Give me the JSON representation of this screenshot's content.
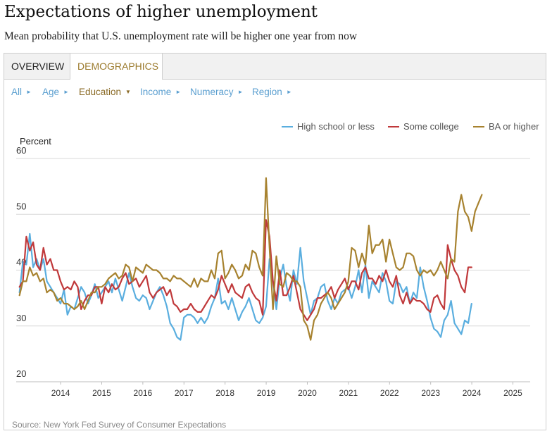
{
  "header": {
    "title": "Expectations of higher unemployment",
    "subtitle": "Mean probability that U.S. unemployment rate will be higher one year from now"
  },
  "tabs": [
    {
      "label": "OVERVIEW",
      "active": false
    },
    {
      "label": "DEMOGRAPHICS",
      "active": true
    }
  ],
  "filters": [
    {
      "label": "All",
      "active": false
    },
    {
      "label": "Age",
      "active": false
    },
    {
      "label": "Education",
      "active": true
    },
    {
      "label": "Income",
      "active": false
    },
    {
      "label": "Numeracy",
      "active": false
    },
    {
      "label": "Region",
      "active": false
    }
  ],
  "source": "Source: New York Fed Survey of Consumer Expectations",
  "colors": {
    "hs": "#5aaedf",
    "sc": "#c0393b",
    "ba": "#a7822f",
    "grid": "#d8d8d8",
    "axis": "#bdbdbd"
  },
  "chart_data": {
    "type": "line",
    "title": "",
    "ylabel": "Percent",
    "ylim": [
      20,
      60
    ],
    "yticks": [
      "20",
      "30",
      "40",
      "50",
      "60"
    ],
    "xlim": [
      2013.42,
      2025.92
    ],
    "xticks": [
      "2014",
      "2015",
      "2016",
      "2017",
      "2018",
      "2019",
      "2020",
      "2021",
      "2022",
      "2023",
      "2024",
      "2025"
    ],
    "start": 2013.5,
    "step": 0.0833,
    "legend_position": "top-right",
    "series": [
      {
        "name": "High school or less",
        "key": "hs",
        "values": [
          36,
          41.5,
          41,
          46.5,
          40.5,
          42,
          40,
          42,
          38,
          37,
          36,
          35,
          34,
          36.5,
          32,
          33.5,
          33,
          35,
          37,
          36,
          34,
          35.5,
          37.5,
          35,
          36,
          37,
          38,
          36,
          38.5,
          36.5,
          34.5,
          37,
          39.5,
          37,
          35,
          34.5,
          35.5,
          35,
          33,
          34.5,
          36,
          37,
          35.5,
          33.5,
          30.5,
          29.5,
          28,
          27.5,
          31.5,
          32,
          32,
          31.5,
          30.5,
          31.5,
          30.5,
          31.5,
          33.5,
          35,
          38.5,
          34,
          34.5,
          33,
          35,
          33,
          31,
          32.5,
          33.5,
          35,
          33,
          31,
          30.5,
          31.5,
          33.5,
          42,
          38,
          33,
          38.5,
          41,
          37,
          34.5,
          40,
          37.5,
          44,
          38,
          35,
          32,
          34.5,
          35,
          37,
          37.5,
          34.5,
          33,
          35,
          34,
          36,
          36.5,
          37,
          35,
          37,
          40,
          36,
          41,
          35,
          38,
          37,
          36,
          39.5,
          38,
          34.5,
          34,
          38,
          37.5,
          36,
          37,
          34,
          36,
          35,
          40.5,
          37,
          34.5,
          31.5,
          29.5,
          29,
          28,
          31,
          32,
          34.5,
          30.5,
          29.5,
          28.5,
          31,
          30.5,
          34
        ]
      },
      {
        "name": "Some college",
        "key": "sc",
        "values": [
          37,
          38,
          46,
          43.5,
          45,
          41,
          40,
          44,
          41,
          42,
          40,
          40,
          38,
          36.5,
          37,
          36.5,
          38,
          37,
          33,
          34.5,
          35.5,
          35.5,
          37,
          37,
          34,
          37,
          36,
          37.5,
          36.5,
          37,
          38.5,
          39.5,
          37.5,
          38,
          38.5,
          37,
          38,
          39,
          36,
          35,
          36,
          36.5,
          37,
          35.5,
          36.5,
          34,
          33.5,
          32.5,
          33,
          33,
          34,
          33,
          32.5,
          32.5,
          33.5,
          34.5,
          35.5,
          35,
          36.5,
          39,
          37.5,
          36,
          37.5,
          36,
          35.5,
          35,
          37,
          37.5,
          36,
          35,
          34.5,
          32,
          49,
          46,
          38,
          34.5,
          40,
          35.5,
          35.5,
          37,
          39,
          36,
          33,
          32,
          31,
          32,
          33,
          35,
          35,
          35.5,
          36,
          37,
          35,
          36.5,
          37.5,
          38.5,
          36.5,
          38,
          38,
          36.5,
          39.5,
          40.5,
          38.5,
          38.5,
          37.5,
          39,
          38,
          40,
          38,
          37,
          39,
          35.5,
          34,
          36,
          34,
          35,
          34.5,
          34.5,
          34,
          33,
          32.5,
          35,
          35.5,
          34,
          33,
          44.5,
          42,
          40,
          39,
          37,
          36,
          40.5,
          40.5
        ]
      },
      {
        "name": "BA or higher",
        "key": "ba",
        "values": [
          35.5,
          38,
          38,
          40.5,
          39,
          39.5,
          38,
          38.5,
          36,
          36.5,
          36,
          34.5,
          35,
          34,
          34,
          33.5,
          33,
          33.5,
          34.5,
          33,
          34.5,
          36,
          36,
          37,
          37,
          37.5,
          38.5,
          39,
          39.5,
          38.5,
          39,
          41,
          40.5,
          38,
          40.5,
          40,
          39.5,
          41,
          40.5,
          40,
          40,
          39.5,
          38.5,
          38.5,
          38,
          39,
          38.5,
          38.5,
          38,
          37.5,
          37,
          38.5,
          37,
          38.5,
          38,
          38,
          40,
          38.5,
          43,
          43.5,
          38.5,
          39.5,
          41,
          40,
          38.5,
          39,
          41,
          40,
          43.5,
          43,
          40.5,
          39,
          56.5,
          44,
          33,
          42.5,
          37.5,
          37,
          39.5,
          39,
          38,
          38,
          37,
          31,
          30,
          27.5,
          31,
          32,
          34,
          35,
          36,
          35,
          33,
          34,
          35,
          36,
          38,
          44,
          43.5,
          40.5,
          43,
          41,
          48,
          43,
          44.5,
          44.5,
          45.5,
          41.5,
          45.5,
          43,
          40.5,
          40,
          40.5,
          43,
          43,
          42.5,
          40,
          39,
          40,
          39.5,
          40,
          39,
          40,
          41.5,
          40,
          38.5,
          42,
          41.5,
          50.5,
          53.5,
          50.5,
          49.5,
          47,
          50.5,
          52,
          53.5
        ]
      }
    ]
  }
}
